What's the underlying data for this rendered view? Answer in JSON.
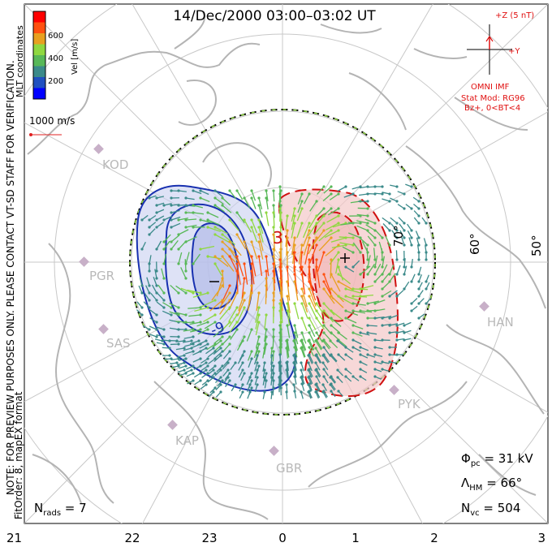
{
  "title": "14/Dec/2000 03:00–03:02 UT",
  "side_labels": {
    "coords": "MLT coordinates",
    "note": "NOTE: FOR PREVIEW PURPOSES ONLY. PLEASE CONTACT VT-SD STAFF FOR VERIFICATION.",
    "fit": "FitOrder: 8, mapEX format"
  },
  "colorbar": {
    "label": "Vel [m/s]",
    "ticks": [
      "600",
      "400",
      "200"
    ],
    "colors": [
      "#0000ff",
      "#2050c0",
      "#3b8a8a",
      "#58b858",
      "#8fd840",
      "#e8a020",
      "#ff5010",
      "#ff0000"
    ]
  },
  "vector_scale": {
    "label": "1000 m/s"
  },
  "imf": {
    "z_label": "+Z (5 nT)",
    "y_label": "+Y",
    "source": "OMNI IMF",
    "model": "Stat Mod: RG96",
    "condition": "Bz+, 0<BT<4"
  },
  "lat_labels": [
    "70°",
    "60°",
    "50°"
  ],
  "contour_labels": {
    "neg": "-9",
    "pos": "3"
  },
  "radars": [
    {
      "code": "KOD"
    },
    {
      "code": "PGR"
    },
    {
      "code": "SAS"
    },
    {
      "code": "KAP"
    },
    {
      "code": "GBR"
    },
    {
      "code": "HAN"
    },
    {
      "code": "PYK"
    }
  ],
  "stats": {
    "phi_pc": "Φpc = 31 kV",
    "lambda_hm": "ΛHM = 66°",
    "n_vc": "Nvc = 504",
    "n_rads": "Nrads = 7"
  },
  "stats_parts": {
    "phi_sym": "Φ",
    "phi_sub": "pc",
    "phi_val": " = 31 kV",
    "lam_sym": "Λ",
    "lam_sub": "HM",
    "lam_val": " = 66°",
    "nvc_sym": "N",
    "nvc_sub": "vc",
    "nvc_val": " = 504",
    "nr_sym": "N",
    "nr_sub": "rads",
    "nr_val": " = 7"
  },
  "mlt_axis": [
    "21",
    "22",
    "23",
    "0",
    "1",
    "2",
    "3"
  ]
}
